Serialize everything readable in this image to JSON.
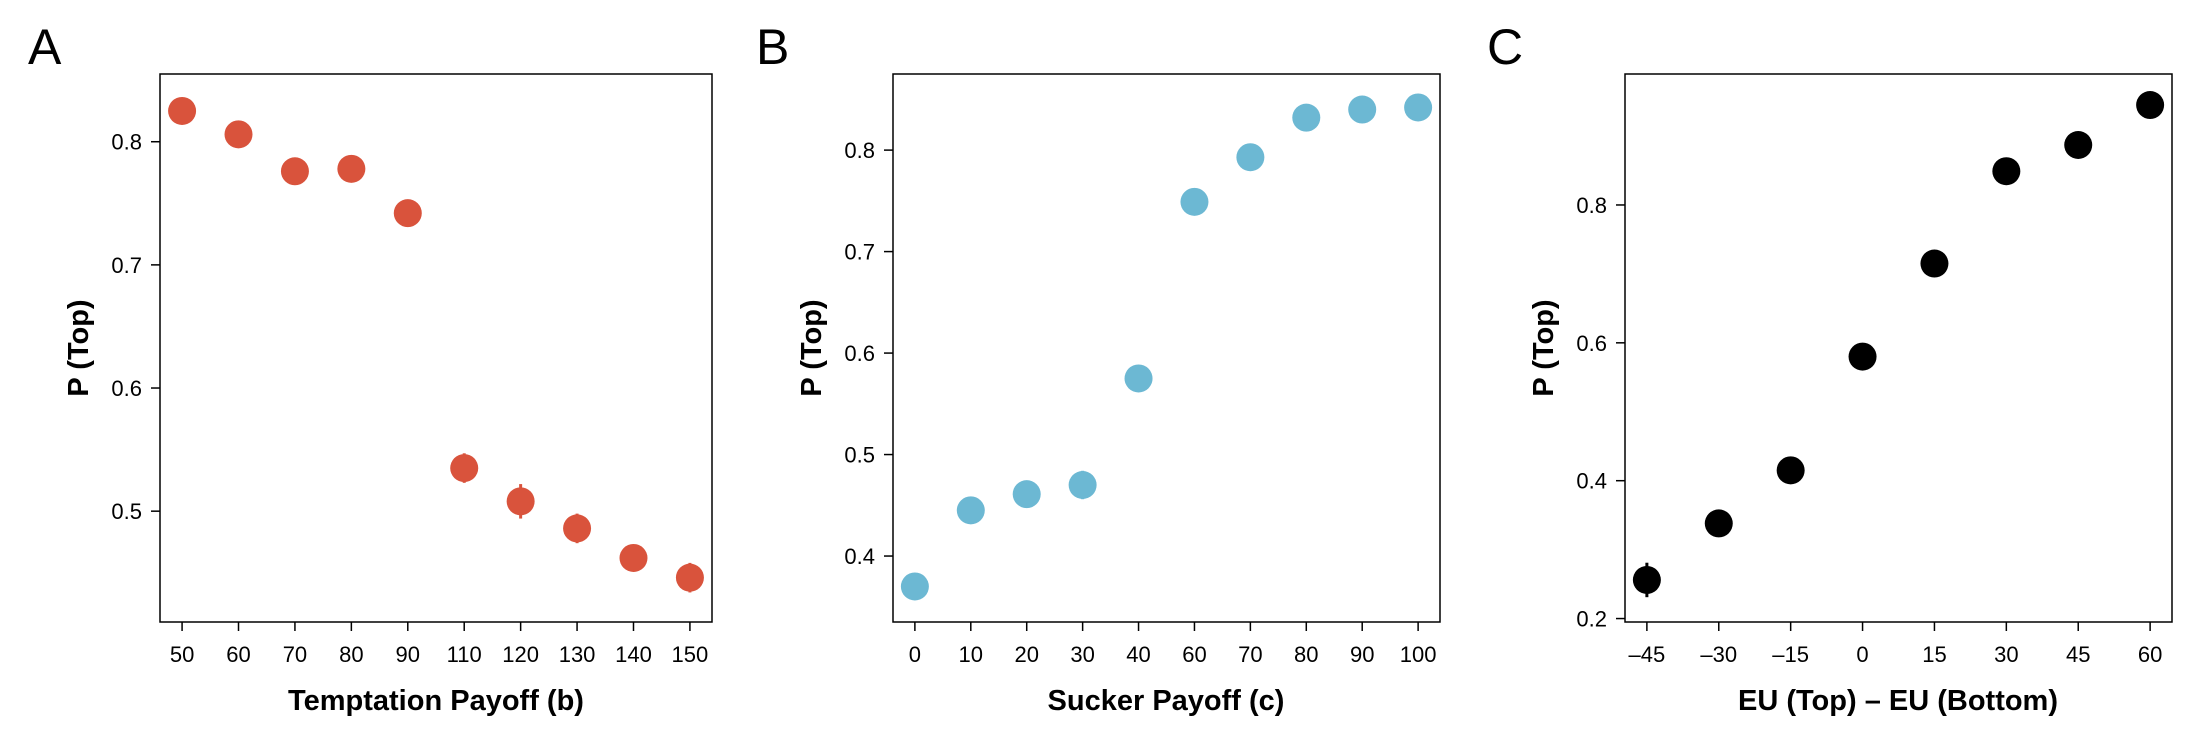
{
  "chart_data": [
    {
      "type": "scatter",
      "panel_letter": "A",
      "xlabel": "Temptation Payoff (b)",
      "ylabel": "P (Top)",
      "x_scale": "categorical",
      "categories": [
        "50",
        "60",
        "70",
        "80",
        "90",
        "110",
        "120",
        "130",
        "140",
        "150"
      ],
      "series": [
        {
          "values": [
            0.825,
            0.806,
            0.776,
            0.778,
            0.742,
            0.535,
            0.508,
            0.486,
            0.462,
            0.446
          ],
          "errors": [
            0.005,
            0.006,
            0.006,
            0.006,
            0.01,
            0.012,
            0.014,
            0.012,
            0.011,
            0.012
          ],
          "color": "#d9533c"
        }
      ],
      "ylim": [
        0.41,
        0.855
      ],
      "yticks": [
        0.5,
        0.6,
        0.7,
        0.8
      ],
      "grid": false
    },
    {
      "type": "scatter",
      "panel_letter": "B",
      "xlabel": "Sucker Payoff (c)",
      "ylabel": "P (Top)",
      "x_scale": "categorical",
      "categories": [
        "0",
        "10",
        "20",
        "30",
        "40",
        "60",
        "70",
        "80",
        "90",
        "100"
      ],
      "series": [
        {
          "values": [
            0.37,
            0.445,
            0.461,
            0.47,
            0.575,
            0.749,
            0.793,
            0.832,
            0.84,
            0.842
          ],
          "errors": [
            0.008,
            0.01,
            0.01,
            0.014,
            0.01,
            0.006,
            0.006,
            0.006,
            0.006,
            0.006
          ],
          "color": "#6cb8d3"
        }
      ],
      "ylim": [
        0.335,
        0.875
      ],
      "yticks": [
        0.4,
        0.5,
        0.6,
        0.7,
        0.8
      ],
      "grid": false
    },
    {
      "type": "scatter",
      "panel_letter": "C",
      "xlabel": "EU (Top) – EU (Bottom)",
      "ylabel": "P (Top)",
      "x_scale": "linear",
      "x": [
        -45,
        -30,
        -15,
        0,
        15,
        30,
        45,
        60
      ],
      "xticks": [
        "–45",
        "–30",
        "–15",
        "0",
        "15",
        "30",
        "45",
        "60"
      ],
      "series": [
        {
          "values": [
            0.256,
            0.338,
            0.415,
            0.58,
            0.715,
            0.849,
            0.887,
            0.945
          ],
          "errors": [
            0.025,
            0.008,
            0.008,
            0.008,
            0.008,
            0.008,
            0.008,
            0.008
          ],
          "color": "#000000"
        }
      ],
      "ylim": [
        0.195,
        0.99
      ],
      "yticks": [
        0.2,
        0.4,
        0.6,
        0.8
      ],
      "grid": false
    }
  ]
}
